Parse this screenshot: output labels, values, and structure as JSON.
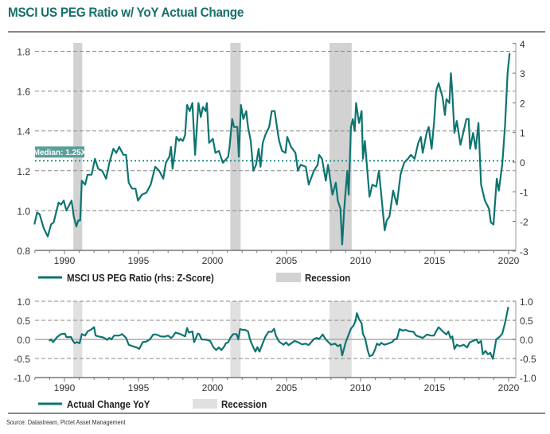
{
  "title": "MSCI US PEG Ratio w/ YoY Actual Change",
  "source": "Source: Datastream, Pictet Asset Management",
  "colors": {
    "line": "#0e7470",
    "recession_top": "#d2d2d2",
    "recession_bottom": "#e0e0e0",
    "title": "#17706b",
    "median_box": "#5b9e9a"
  },
  "chart_data": [
    {
      "type": "line",
      "title": "MSCI US PEG Ratio",
      "legend": [
        "MSCI US PEG Ratio (rhs: Z-Score)",
        "Recession"
      ],
      "median_label": "Median: 1.25X",
      "median_value": 1.25,
      "xlim": [
        1988,
        2020.5
      ],
      "ylim": [
        0.8,
        1.85
      ],
      "y2lim": [
        -3,
        4
      ],
      "x_ticks": [
        "1990",
        "1995",
        "2000",
        "2005",
        "2010",
        "2015",
        "2020"
      ],
      "y_ticks": [
        "0.8",
        "1.0",
        "1.2",
        "1.4",
        "1.6",
        "1.8"
      ],
      "y2_ticks": [
        "-3",
        "-2",
        "-1",
        "0",
        "1",
        "2",
        "3",
        "4"
      ],
      "recessions": [
        [
          1990.6,
          1991.2
        ],
        [
          2001.2,
          2001.9
        ],
        [
          2007.9,
          2009.4
        ]
      ],
      "x": [
        1987.97,
        1988.15,
        1988.33,
        1988.6,
        1988.87,
        1989.09,
        1989.27,
        1989.6,
        1989.77,
        1989.95,
        1990.13,
        1990.48,
        1990.63,
        1990.8,
        1990.93,
        1991.06,
        1991.17,
        1991.4,
        1991.56,
        1991.83,
        1992.06,
        1992.28,
        1992.55,
        1992.81,
        1993.03,
        1993.3,
        1993.5,
        1993.7,
        1993.98,
        1994.16,
        1994.34,
        1994.57,
        1994.8,
        1994.96,
        1995.23,
        1995.54,
        1995.82,
        1996.13,
        1996.4,
        1996.67,
        1996.85,
        1997.08,
        1997.2,
        1997.3,
        1997.47,
        1997.56,
        1997.74,
        1997.83,
        1998.0,
        1998.15,
        1998.28,
        1998.46,
        1998.64,
        1998.82,
        1999.05,
        1999.21,
        1999.35,
        1999.53,
        1999.62,
        1999.77,
        2000.02,
        2000.2,
        2000.43,
        2000.7,
        2001.06,
        2001.15,
        2001.33,
        2001.45,
        2001.68,
        2001.78,
        2001.92,
        2002.08,
        2002.28,
        2002.4,
        2002.58,
        2002.76,
        2002.94,
        2003.12,
        2003.24,
        2003.39,
        2003.57,
        2003.83,
        2004.0,
        2004.2,
        2004.37,
        2004.5,
        2004.7,
        2004.93,
        2005.05,
        2005.3,
        2005.6,
        2005.77,
        2005.95,
        2006.3,
        2006.5,
        2006.85,
        2007.1,
        2007.2,
        2007.4,
        2007.65,
        2007.8,
        2008.1,
        2008.33,
        2008.46,
        2008.64,
        2008.76,
        2008.9,
        2009.1,
        2009.2,
        2009.35,
        2009.48,
        2009.6,
        2009.7,
        2009.9,
        2010.07,
        2010.16,
        2010.29,
        2010.6,
        2010.8,
        2011.06,
        2011.24,
        2011.4,
        2011.63,
        2011.77,
        2011.95,
        2012.2,
        2012.45,
        2012.7,
        2012.94,
        2013.2,
        2013.4,
        2013.65,
        2013.9,
        2014.07,
        2014.2,
        2014.46,
        2014.6,
        2014.8,
        2014.96,
        2015.1,
        2015.27,
        2015.54,
        2015.7,
        2015.8,
        2016.0,
        2016.1,
        2016.2,
        2016.34,
        2016.5,
        2016.75,
        2017.15,
        2017.3,
        2017.4,
        2017.6,
        2017.78,
        2017.96,
        2018.14,
        2018.4,
        2018.67,
        2018.8,
        2018.98,
        2019.2,
        2019.34,
        2019.57,
        2019.75,
        2019.93,
        2020.07
      ],
      "values": [
        0.93,
        0.99,
        0.98,
        0.91,
        0.87,
        0.93,
        0.94,
        1.04,
        1.03,
        1.05,
        1.0,
        1.05,
        0.97,
        0.92,
        0.95,
        0.95,
        1.15,
        1.13,
        1.18,
        1.18,
        1.26,
        1.21,
        1.2,
        1.16,
        1.24,
        1.31,
        1.29,
        1.32,
        1.28,
        1.28,
        1.14,
        1.11,
        1.11,
        1.05,
        1.08,
        1.09,
        1.13,
        1.22,
        1.2,
        1.16,
        1.24,
        1.27,
        1.32,
        1.21,
        1.3,
        1.37,
        1.35,
        1.36,
        1.35,
        1.38,
        1.53,
        1.5,
        1.54,
        1.28,
        1.54,
        1.47,
        1.52,
        1.5,
        1.54,
        1.34,
        1.36,
        1.29,
        1.3,
        1.24,
        1.27,
        1.32,
        1.46,
        1.42,
        1.42,
        1.27,
        1.53,
        1.46,
        1.5,
        1.42,
        1.35,
        1.2,
        1.23,
        1.31,
        1.22,
        1.34,
        1.38,
        1.42,
        1.5,
        1.5,
        1.41,
        1.35,
        1.3,
        1.29,
        1.37,
        1.32,
        1.29,
        1.2,
        1.23,
        1.22,
        1.13,
        1.2,
        1.23,
        1.28,
        1.26,
        1.15,
        1.23,
        1.08,
        1.14,
        1.05,
        1.01,
        0.83,
        1.01,
        1.2,
        1.08,
        1.42,
        1.46,
        1.4,
        1.54,
        1.44,
        1.5,
        1.26,
        1.35,
        1.07,
        1.13,
        1.12,
        1.2,
        1.08,
        0.9,
        0.95,
        0.97,
        1.1,
        1.03,
        1.18,
        1.24,
        1.26,
        1.28,
        1.26,
        1.34,
        1.37,
        1.29,
        1.39,
        1.42,
        1.31,
        1.44,
        1.6,
        1.64,
        1.57,
        1.48,
        1.56,
        1.54,
        1.69,
        1.59,
        1.39,
        1.45,
        1.33,
        1.46,
        1.46,
        1.31,
        1.39,
        1.31,
        1.44,
        1.13,
        1.05,
        1.01,
        0.94,
        0.93,
        1.16,
        1.1,
        1.23,
        1.42,
        1.69,
        1.79
      ]
    },
    {
      "type": "line",
      "title": "Actual Change YoY",
      "legend": [
        "Actual Change YoY",
        "Recession"
      ],
      "xlim": [
        1988,
        2020.5
      ],
      "ylim": [
        -1.0,
        1.0
      ],
      "x_ticks": [
        "1990",
        "1995",
        "2000",
        "2005",
        "2010",
        "2015",
        "2020"
      ],
      "y_ticks": [
        "-1.0",
        "-0.5",
        "0.0",
        "0.5",
        "1.0"
      ],
      "y2_ticks": [
        "-1.0",
        "-0.5",
        "0.0",
        "0.5",
        "1.0"
      ],
      "recessions": [
        [
          1990.6,
          1991.2
        ],
        [
          2001.2,
          2001.9
        ],
        [
          2007.9,
          2009.4
        ]
      ],
      "x": [
        1988.96,
        1989.09,
        1989.23,
        1989.5,
        1989.77,
        1990.04,
        1990.13,
        1990.45,
        1990.57,
        1990.7,
        1990.84,
        1991.02,
        1991.17,
        1991.4,
        1991.56,
        1991.77,
        1992.0,
        1992.1,
        1992.37,
        1992.63,
        1992.9,
        1993.03,
        1993.17,
        1993.35,
        1993.7,
        1993.89,
        1994.16,
        1994.34,
        1994.6,
        1994.87,
        1995.05,
        1995.29,
        1995.5,
        1995.77,
        1996.0,
        1996.2,
        1996.5,
        1996.75,
        1997.0,
        1997.2,
        1997.33,
        1997.5,
        1997.83,
        1998.15,
        1998.28,
        1998.4,
        1998.64,
        1998.76,
        1999.0,
        1999.1,
        1999.27,
        1999.62,
        1999.84,
        2000.07,
        2000.25,
        2000.43,
        2000.6,
        2000.8,
        2000.9,
        2001.06,
        2001.2,
        2001.4,
        2001.63,
        2001.74,
        2001.86,
        2002.04,
        2002.2,
        2002.4,
        2002.53,
        2002.67,
        2002.9,
        2003.03,
        2003.17,
        2003.39,
        2003.57,
        2003.78,
        2004.0,
        2004.16,
        2004.28,
        2004.5,
        2004.8,
        2004.96,
        2005.14,
        2005.32,
        2005.54,
        2005.77,
        2006.04,
        2006.3,
        2006.49,
        2006.67,
        2006.85,
        2007.03,
        2007.2,
        2007.44,
        2007.65,
        2007.83,
        2008.0,
        2008.28,
        2008.46,
        2008.64,
        2008.76,
        2009.0,
        2009.18,
        2009.35,
        2009.53,
        2009.66,
        2009.75,
        2009.9,
        2010.07,
        2010.16,
        2010.3,
        2010.48,
        2010.6,
        2010.8,
        2010.97,
        2011.1,
        2011.27,
        2011.4,
        2011.6,
        2011.86,
        2012.13,
        2012.28,
        2012.45,
        2012.63,
        2012.85,
        2013.03,
        2013.3,
        2013.57,
        2013.75,
        2013.92,
        2014.2,
        2014.5,
        2014.73,
        2014.96,
        2015.1,
        2015.27,
        2015.45,
        2015.63,
        2015.8,
        2015.93,
        2016.07,
        2016.2,
        2016.34,
        2016.5,
        2016.7,
        2016.97,
        2017.2,
        2017.37,
        2017.6,
        2017.83,
        2017.96,
        2018.14,
        2018.26,
        2018.44,
        2018.6,
        2018.76,
        2018.94,
        2019.16,
        2019.4,
        2019.57,
        2019.75,
        2019.98
      ],
      "values": [
        -0.04,
        0,
        -0.07,
        0.06,
        0.14,
        0.15,
        0.06,
        0.06,
        -0.04,
        -0.1,
        -0.07,
        -0.1,
        0.14,
        0.1,
        0.21,
        0.25,
        0.32,
        0.1,
        0.07,
        0.05,
        -0.01,
        0.04,
        0,
        0.1,
        0.1,
        0.14,
        0.04,
        -0.14,
        -0.18,
        -0.21,
        -0.25,
        -0.07,
        -0.06,
        0,
        0.13,
        0.13,
        0.08,
        0.07,
        0.1,
        0.04,
        0.08,
        0.18,
        0.14,
        0.08,
        0.3,
        0.18,
        0.21,
        -0.07,
        0.15,
        0.14,
        0,
        -0.01,
        -0.04,
        -0.21,
        -0.28,
        -0.21,
        -0.28,
        -0.18,
        -0.1,
        -0.08,
        0.04,
        0.14,
        0.14,
        0,
        0.27,
        0.25,
        0.25,
        0.21,
        0,
        -0.14,
        -0.32,
        -0.2,
        -0.32,
        -0.1,
        0.07,
        0.2,
        0.2,
        0.28,
        0.1,
        -0.06,
        -0.14,
        -0.08,
        -0.15,
        -0.1,
        -0.04,
        -0.07,
        -0.13,
        -0.11,
        -0.15,
        -0.07,
        0.01,
        0.04,
        0.01,
        0.13,
        0,
        -0.07,
        -0.14,
        -0.11,
        -0.18,
        -0.14,
        -0.42,
        -0.07,
        0.11,
        0.28,
        0.37,
        0.49,
        0.69,
        0.53,
        0.42,
        0.14,
        0.04,
        -0.28,
        -0.44,
        -0.41,
        -0.28,
        -0.11,
        -0.15,
        -0.09,
        -0.14,
        -0.11,
        -0.07,
        0,
        0.01,
        0.27,
        0.23,
        0.25,
        0.21,
        0.2,
        0.1,
        0.08,
        0.04,
        0.13,
        0.1,
        0.1,
        0.21,
        0.32,
        0.25,
        0.18,
        0.13,
        0.21,
        0.04,
        0.08,
        -0.25,
        -0.14,
        -0.18,
        -0.14,
        -0.21,
        -0.08,
        -0.04,
        0,
        -0.1,
        -0.04,
        -0.39,
        -0.3,
        -0.39,
        -0.35,
        -0.51,
        0,
        0.07,
        0.15,
        0.42,
        0.85
      ]
    }
  ]
}
